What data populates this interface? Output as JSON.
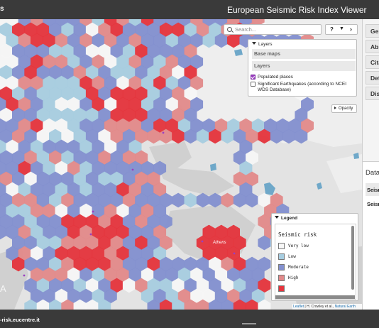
{
  "header": {
    "brand_fragment": "s",
    "title": "European Seismic Risk Index Viewer"
  },
  "search": {
    "placeholder": "Search...",
    "value": ""
  },
  "toolbar": {
    "help_label": "?",
    "dropdown_icon": "chevron-down-icon",
    "next_icon": "chevron-right-icon"
  },
  "layers_panel": {
    "header": "Layers",
    "groups": [
      "Base maps",
      "Layers"
    ],
    "items": [
      {
        "label": "Populated places",
        "checked": true
      },
      {
        "label": "Significant Earthquakes (according to NCEI WDS Database)",
        "checked": false
      }
    ]
  },
  "opacity_button": {
    "label": "Opacity"
  },
  "legend": {
    "header": "Legend",
    "title": "Seismic risk",
    "items": [
      {
        "label": "Very low",
        "color": "#f7f7f7"
      },
      {
        "label": "Low",
        "color": "#a7cde0"
      },
      {
        "label": "Moderate",
        "color": "#8390cf"
      },
      {
        "label": "High",
        "color": "#e28a8a"
      },
      {
        "label": "",
        "color": "#e5343c"
      }
    ]
  },
  "map": {
    "place_label": "Athens",
    "corner_fragment": "A"
  },
  "right_panel": {
    "accordion_items": [
      "Gen",
      "Abs",
      "Cita",
      "Def",
      "Dis"
    ],
    "data_title": "Data",
    "data_rows": [
      "Seism",
      "Seism"
    ]
  },
  "attribution": {
    "leaflet": "Leaflet",
    "text": " | H. Crowley et al., ",
    "natural_earth": "Natural Earth"
  },
  "footer": {
    "url_fragment": "-risk.eucentre.it"
  }
}
